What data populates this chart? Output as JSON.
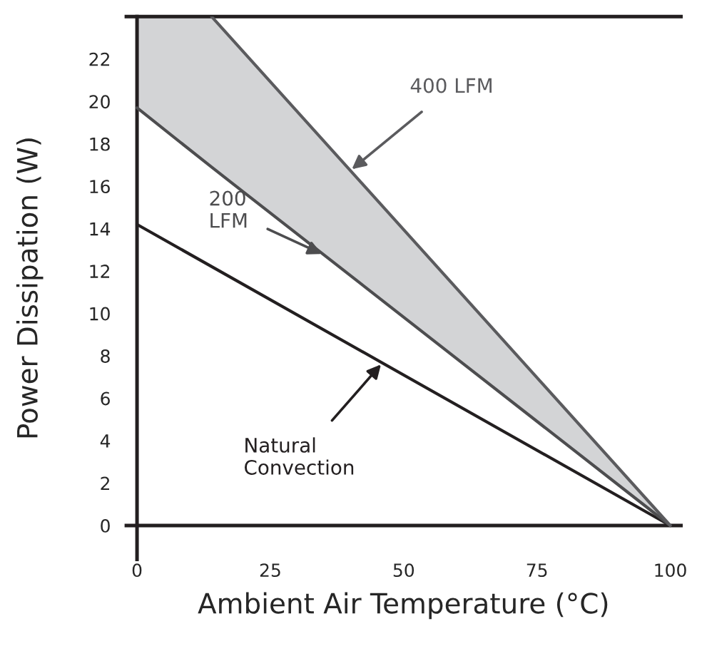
{
  "chart_data": {
    "type": "line",
    "xlabel": "Ambient Air Temperature (°C)",
    "ylabel": "Power Dissipation (W)",
    "series": [
      {
        "name": "Natural\nConvection",
        "color": "#231f20",
        "x": [
          0,
          100
        ],
        "values": [
          14.2,
          0
        ]
      },
      {
        "name": "200\nLFM",
        "color": "#4d4d4f",
        "x": [
          0,
          14,
          100
        ],
        "values": [
          19.7,
          16.9,
          0
        ],
        "upper": [
          24,
          24,
          0
        ],
        "lower": [
          19.7,
          16.9,
          0
        ]
      },
      {
        "name": "400 LFM",
        "color": "#5b5b5e",
        "x": [
          14,
          100
        ],
        "values": [
          24,
          0
        ]
      }
    ],
    "xlim": [
      -2,
      102
    ],
    "ylim": [
      -1.6,
      24
    ],
    "xticks": [
      0,
      25,
      50,
      75,
      100
    ],
    "yticks": [
      0,
      2,
      4,
      6,
      8,
      10,
      12,
      14,
      16,
      18,
      20,
      22
    ],
    "grid": false,
    "legend": false
  }
}
